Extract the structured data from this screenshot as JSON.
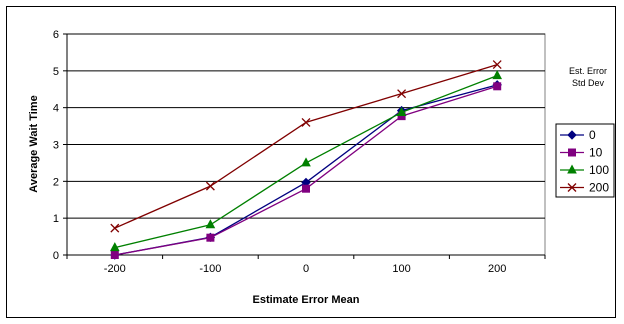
{
  "chart_data": {
    "type": "line",
    "title": "",
    "xlabel": "Estimate Error Mean",
    "ylabel": "Average Wait Time",
    "x": [
      -200,
      -100,
      0,
      100,
      200
    ],
    "x_tick_labels": [
      "-200",
      "-100",
      "0",
      "100",
      "200"
    ],
    "ylim": [
      0,
      6
    ],
    "y_ticks": [
      0,
      1,
      2,
      3,
      4,
      5,
      6
    ],
    "y_tick_labels": [
      "0",
      "1",
      "2",
      "3",
      "4",
      "5",
      "6"
    ],
    "grid": "horizontal",
    "legend_title": [
      "Est. Error",
      "Std Dev"
    ],
    "legend_position": "right",
    "series": [
      {
        "name": "0",
        "values": [
          0.0,
          0.48,
          1.97,
          3.92,
          4.62
        ],
        "color": "#000080",
        "marker": "diamond"
      },
      {
        "name": "10",
        "values": [
          0.0,
          0.47,
          1.8,
          3.77,
          4.58
        ],
        "color": "#800080",
        "marker": "square"
      },
      {
        "name": "100",
        "values": [
          0.2,
          0.82,
          2.5,
          3.87,
          4.87
        ],
        "color": "#008000",
        "marker": "triangle"
      },
      {
        "name": "200",
        "values": [
          0.73,
          1.87,
          3.6,
          4.38,
          5.17
        ],
        "color": "#800000",
        "marker": "x"
      }
    ]
  }
}
